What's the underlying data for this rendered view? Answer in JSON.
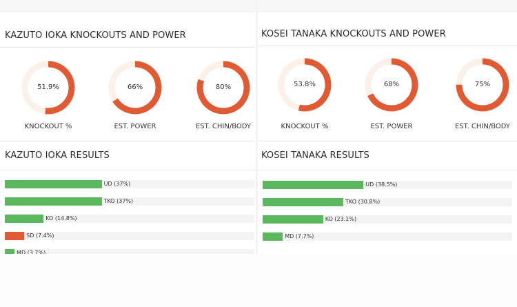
{
  "colors": {
    "accent": "#e05a33",
    "track": "#fbf1e9",
    "bar_green": "#5cb85c",
    "bar_red": "#e05a33",
    "bar_track": "#f3f3f3"
  },
  "left": {
    "power_title": "KAZUTO IOKA KNOCKOUTS AND POWER",
    "results_title": "KAZUTO IOKA RESULTS"
  },
  "right": {
    "power_title": "KOSEI TANAKA KNOCKOUTS AND POWER",
    "results_title": "KOSEI TANAKA RESULTS"
  },
  "chart_data": [
    {
      "type": "pie",
      "title": "KAZUTO IOKA KNOCKOUTS AND POWER",
      "categories": [
        "KNOCKOUT %",
        "EST. POWER",
        "EST. CHIN/BODY"
      ],
      "values": [
        51.9,
        66,
        80
      ],
      "value_labels": [
        "51.9%",
        "66%",
        "80%"
      ]
    },
    {
      "type": "pie",
      "title": "KOSEI TANAKA KNOCKOUTS AND POWER",
      "categories": [
        "KNOCKOUT %",
        "EST. POWER",
        "EST. CHIN/BODY"
      ],
      "values": [
        53.8,
        68,
        75
      ],
      "value_labels": [
        "53.8%",
        "68%",
        "75%"
      ]
    },
    {
      "type": "bar",
      "title": "KAZUTO IOKA RESULTS",
      "categories": [
        "UD",
        "TKO",
        "KO",
        "SD",
        "MD"
      ],
      "values": [
        37,
        37,
        14.8,
        7.4,
        3.7
      ],
      "labels": [
        "UD (37%)",
        "TKO (37%)",
        "KO (14.8%)",
        "SD (7.4%)",
        "MD (3.7%)"
      ],
      "colors": [
        "#5cb85c",
        "#5cb85c",
        "#5cb85c",
        "#e05a33",
        "#5cb85c"
      ]
    },
    {
      "type": "bar",
      "title": "KOSEI TANAKA RESULTS",
      "categories": [
        "UD",
        "TKO",
        "KO",
        "MD"
      ],
      "values": [
        38.5,
        30.8,
        23.1,
        7.7
      ],
      "labels": [
        "UD (38.5%)",
        "TKO (30.8%)",
        "KO (23.1%)",
        "MD (7.7%)"
      ],
      "colors": [
        "#5cb85c",
        "#5cb85c",
        "#5cb85c",
        "#5cb85c"
      ]
    }
  ]
}
